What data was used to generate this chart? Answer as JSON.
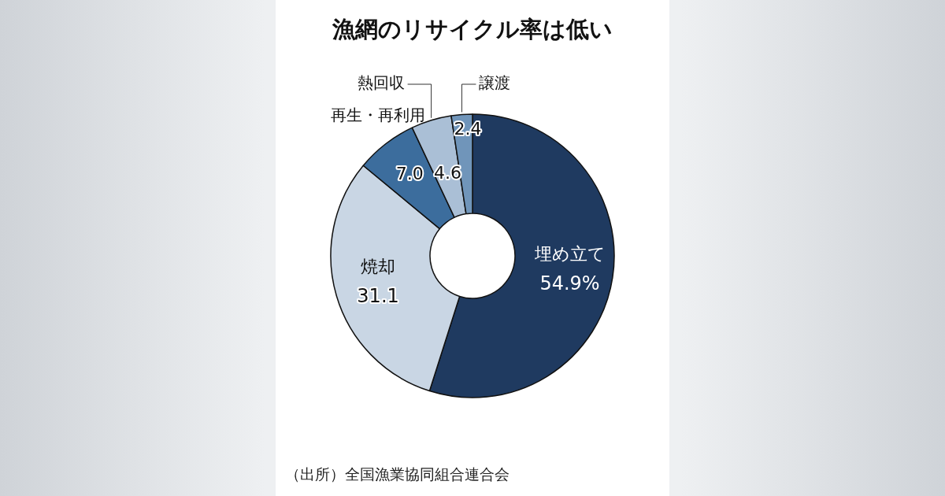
{
  "chart_data": {
    "type": "donut",
    "title": "漁網のリサイクル率は低い",
    "categories": [
      "埋め立て",
      "焼却",
      "再生・再利用",
      "熱回収",
      "譲渡"
    ],
    "values": [
      54.9,
      31.1,
      7.0,
      4.6,
      2.4
    ],
    "value_labels": [
      "54.9%",
      "31.1",
      "7.0",
      "4.6",
      "2.4"
    ],
    "colors": [
      "#1f3a60",
      "#c9d6e4",
      "#3c6d9d",
      "#aabfd6",
      "#7095ba"
    ],
    "annotations": [
      "（出所）全国漁業協同組合連合会"
    ],
    "legend": false
  }
}
